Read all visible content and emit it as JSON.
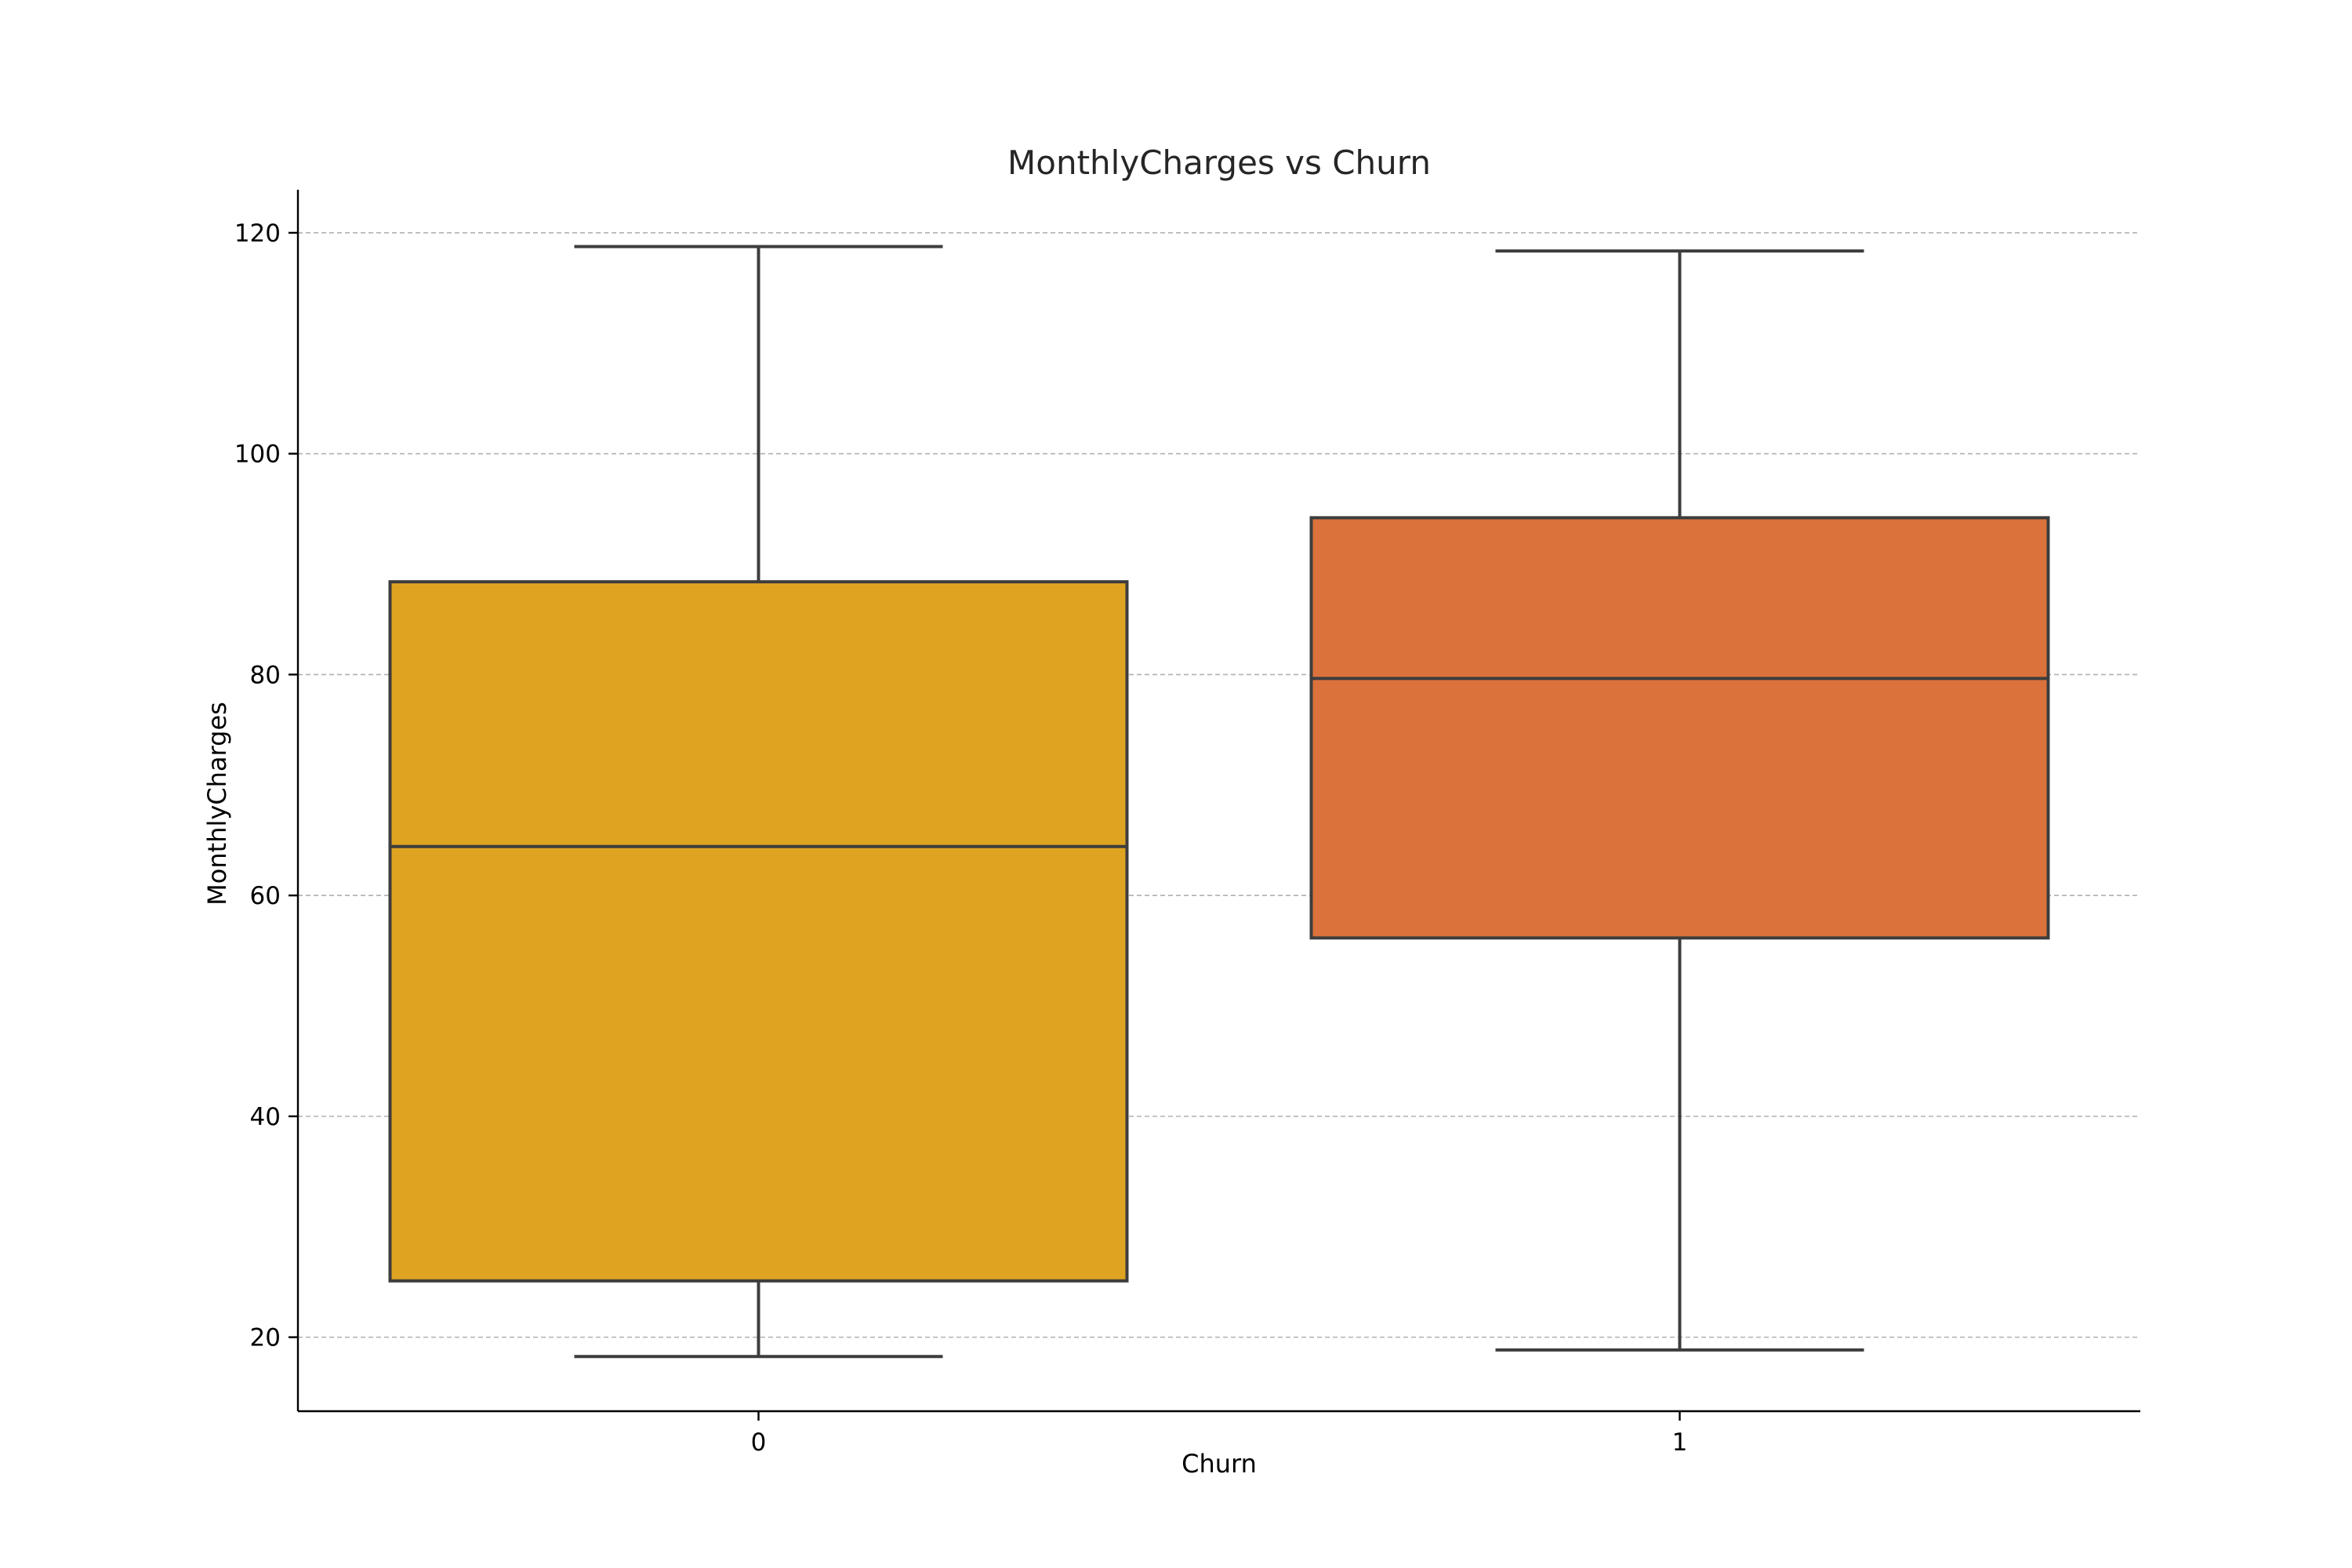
{
  "chart_data": {
    "type": "box",
    "title": "MonthlyCharges vs Churn",
    "xlabel": "Churn",
    "ylabel": "MonthlyCharges",
    "ylim": [
      13.3,
      123.9
    ],
    "yticks": [
      20,
      40,
      60,
      80,
      100,
      120
    ],
    "grid": "y",
    "categories": [
      "0",
      "1"
    ],
    "boxes": [
      {
        "category": "0",
        "whisker_low": 18.25,
        "q1": 25.1,
        "median": 64.43,
        "q3": 88.4,
        "whisker_high": 118.75,
        "color": "#DFA322"
      },
      {
        "category": "1",
        "whisker_low": 18.85,
        "q1": 56.15,
        "median": 79.65,
        "q3": 94.2,
        "whisker_high": 118.35,
        "color": "#DB723C"
      }
    ]
  }
}
